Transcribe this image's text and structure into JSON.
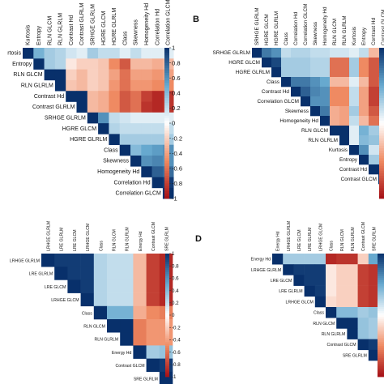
{
  "colorbar": {
    "ticks": [
      "1",
      "0.8",
      "0.6",
      "0.4",
      "0.2",
      "0",
      "-0.2",
      "-0.4",
      "-0.6",
      "-0.8",
      "-1"
    ],
    "colors": {
      "neg": "#a50f15",
      "mid": "#ffffff",
      "pos": "#08306b"
    }
  },
  "chart_data": [
    {
      "type": "heatmap",
      "panel": "A",
      "panel_label": "",
      "variables": [
        "Kurtosis",
        "Entropy",
        "RLN GLCM",
        "RLN GLRLM",
        "Contrast Hd",
        "Contrast GLRLM",
        "SRHGE GLRLM",
        "HGRE GLCM",
        "HGRE GLRLM",
        "Class",
        "Skewness",
        "Homogeneity Hd",
        "Correlation Hd",
        "Correlation GLCM"
      ],
      "column_labels": [
        "Kurtosis",
        "Entropy",
        "RLN GLCM",
        "RLN GLRLM",
        "Contrast Hd",
        "Contrast GLRLM",
        "SRHGE GLRLM",
        "HGRE GLCM",
        "HGRE GLRLM",
        "Class",
        "Skewness",
        "Homogeneity Hd",
        "Correlation Hd",
        "Correlation GLCM"
      ],
      "row_labels": [
        "rtosis",
        "Entropy",
        "RLN GLCM",
        "RLN GLRLM",
        "Contrast Hd",
        "Contrast GLRLM",
        "SRHGE GLRLM",
        "HGRE GLCM",
        "HGRE GLRLM",
        "Class",
        "Skewness",
        "Homogeneity Hd",
        "Correlation Hd",
        "Correlation GLCM"
      ],
      "upper_triangle": [
        [
          0.45,
          0.3,
          0.25,
          0.15,
          0.1,
          0.3,
          0.2,
          0.2,
          0.1,
          0.2,
          0.1,
          0.1,
          0.1
        ],
        [
          0.3,
          0.25,
          -0.1,
          -0.2,
          -0.2,
          -0.25,
          -0.5,
          -0.7,
          -0.3,
          -0.3,
          -0.35,
          -0.3
        ],
        [
          1.0,
          -0.2,
          -0.3,
          -0.2,
          -0.25,
          -0.4,
          -0.6,
          -0.4,
          -0.4,
          -0.45,
          -0.4
        ],
        [
          -0.25,
          -0.3,
          -0.2,
          -0.25,
          -0.45,
          -0.6,
          -0.45,
          -0.45,
          -0.5,
          -0.5
        ],
        [
          1.0,
          -0.3,
          -0.35,
          -0.5,
          -0.7,
          -0.6,
          -0.8,
          -0.9,
          -0.85
        ],
        [
          -0.3,
          -0.35,
          -0.5,
          -0.7,
          -0.6,
          -0.85,
          -0.9,
          -0.85
        ],
        [
          0.6,
          0.2,
          0.15,
          0.1,
          0.1,
          0.1,
          0.1
        ],
        [
          0.25,
          0.2,
          0.2,
          0.2,
          0.2,
          0.2
        ],
        [
          0.3,
          0.3,
          0.3,
          0.3,
          0.3
        ],
        [
          0.4,
          0.5,
          0.55,
          0.6
        ],
        [
          0.6,
          0.65,
          0.6
        ],
        [
          0.8,
          0.75
        ],
        [
          0.95
        ]
      ]
    },
    {
      "type": "heatmap",
      "panel": "B",
      "panel_label": "B",
      "variables": [
        "SRHGE GLRLM",
        "HGRE GLCM",
        "HGRE GLRLM",
        "Class",
        "Contrast Hd",
        "Correlation GLCM",
        "Skewness",
        "Homogeneity Hd",
        "RLN GLCM",
        "RLN GLRLM",
        "Kurtosis",
        "Entropy",
        "Contrast Hd",
        "Contrast GLCM"
      ],
      "column_labels": [
        "SRHGE GLRLM",
        "HGRE GLCM",
        "HGRE GLRLM",
        "Class",
        "Correlation Hd",
        "Correlation GLCM",
        "Skewness",
        "Homogeneity Hd",
        "RLN GLCM",
        "RLN GLRLM",
        "Kurtosis",
        "Entropy",
        "Contrast Hd",
        "Contrast GLCM"
      ],
      "row_labels": [
        "SRHGE GLRLM",
        "HGRE GLCM",
        "HGRE GLRLM",
        "Class",
        "Contrast Hd",
        "Correlation GLCM",
        "Skewness",
        "Homogeneity Hd",
        "RLN GLCM",
        "RLN GLRLM",
        "Kurtosis",
        "Entropy",
        "Contrast Hd",
        "Contrast GLCM"
      ],
      "upper_triangle": [
        [
          0.7,
          0.6,
          0.2,
          0.25,
          0.25,
          0.2,
          0.2,
          0.15,
          0.15,
          0.1,
          0.2,
          -0.3,
          -0.3
        ],
        [
          0.9,
          0.3,
          0.3,
          0.3,
          0.25,
          0.25,
          -0.6,
          -0.6,
          0.3,
          -0.5,
          -0.7,
          -0.7
        ],
        [
          0.3,
          0.3,
          0.3,
          0.25,
          0.25,
          -0.6,
          -0.6,
          0.3,
          -0.5,
          -0.7,
          -0.7
        ],
        [
          0.7,
          0.7,
          0.6,
          0.5,
          -0.3,
          -0.3,
          0.1,
          -0.3,
          -0.7,
          -0.65
        ],
        [
          0.8,
          0.65,
          0.6,
          -0.5,
          -0.5,
          0.2,
          -0.4,
          -0.8,
          -0.8
        ],
        [
          0.6,
          0.6,
          -0.5,
          -0.5,
          0.2,
          -0.4,
          -0.8,
          -0.8
        ],
        [
          0.7,
          -0.35,
          -0.4,
          0.3,
          -0.4,
          -0.7,
          -0.7
        ],
        [
          -0.35,
          -0.4,
          0.2,
          -0.3,
          -0.6,
          -0.6
        ],
        [
          1.0,
          0.1,
          0.45,
          0.3,
          0.3
        ],
        [
          0.1,
          0.4,
          0.35,
          0.35
        ],
        [
          0.6,
          0.15,
          0.15
        ],
        [
          0.3,
          0.3
        ],
        [
          1.0
        ]
      ]
    },
    {
      "type": "heatmap",
      "panel": "C",
      "panel_label": "",
      "variables": [
        "LRHGE GLRLM",
        "LRE GLRLM",
        "LRE GLCM",
        "LRHGE GLCM",
        "Class",
        "RLN GLCM",
        "RLN GLRLM",
        "Energy Hd",
        "Contrast GLRLM",
        "SRE GLRLM"
      ],
      "column_labels": [
        "LRHGE GLRLM",
        "LRE GLRLM",
        "LRE GLCM",
        "LRHGE GLCM",
        "Class",
        "RLN GLCM",
        "RLN GLRLM",
        "Energy Hd",
        "Contrast GLCM",
        "SRE GLRLM"
      ],
      "row_labels": [
        "LRHGE GLRLM",
        "LRE GLRLM",
        "LRE GLCM",
        "LRHGE GLCM",
        "Class",
        "RLN GLCM",
        "RLN GLRLM",
        "Energy Hd",
        "Contrast GLCM",
        "SRE GLRLM"
      ],
      "upper_triangle": [
        [
          0.95,
          0.95,
          0.95,
          0.25,
          0.2,
          0.2,
          -0.3,
          -0.8,
          -0.9
        ],
        [
          0.95,
          0.95,
          0.25,
          0.2,
          0.2,
          -0.3,
          -0.8,
          -0.9
        ],
        [
          0.95,
          0.25,
          0.2,
          0.2,
          -0.3,
          -0.8,
          -0.9
        ],
        [
          0.25,
          0.2,
          0.2,
          -0.3,
          -0.8,
          -0.9
        ],
        [
          0.45,
          0.45,
          -0.35,
          -0.5,
          -0.55
        ],
        [
          1.0,
          -0.55,
          -0.45,
          -0.45
        ],
        [
          -0.55,
          -0.45,
          -0.45
        ],
        [
          0.3,
          0.35
        ],
        [
          0.95
        ]
      ]
    },
    {
      "type": "heatmap",
      "panel": "D",
      "panel_label": "D",
      "variables": [
        "Energy Hd",
        "LRHGE GLRLM",
        "LRE GLCM",
        "LRE GLRLM",
        "LRHGE GLCM",
        "Class",
        "RLN GLCM",
        "RLN GLRLM",
        "Contrast GLCM",
        "SRE GLRLM"
      ],
      "column_labels": [
        "Energy Hd",
        "LRHGE GLRLM",
        "LRE GLCM",
        "LRE GLRLM",
        "LRHGE GLCM",
        "Class",
        "RLN GLCM",
        "RLN GLRLM",
        "Contrast GLCM",
        "SRE GLRLM"
      ],
      "row_labels": [
        "Energy Hd",
        "LRHGE GLRLM",
        "LRE GLCM",
        "LRE GLRLM",
        "LRHGE GLCM",
        "Class",
        "RLN GLCM",
        "RLN GLRLM",
        "Contrast GLCM",
        "SRE GLRLM"
      ],
      "upper_triangle": [
        [
          0.3,
          0.3,
          0.3,
          0.3,
          -0.9,
          -0.85,
          -0.85,
          -0.2,
          0.5
        ],
        [
          0.95,
          0.95,
          0.95,
          -0.1,
          -0.2,
          -0.2,
          -0.8,
          -0.85
        ],
        [
          0.95,
          0.95,
          -0.1,
          -0.2,
          -0.2,
          -0.8,
          -0.85
        ],
        [
          0.95,
          -0.1,
          -0.2,
          -0.2,
          -0.8,
          -0.85
        ],
        [
          -0.15,
          -0.2,
          -0.2,
          -0.8,
          -0.85
        ],
        [
          0.4,
          0.4,
          0.3,
          0.35
        ],
        [
          1.0,
          0.35,
          0.3
        ],
        [
          0.35,
          0.3
        ],
        [
          0.95
        ]
      ]
    }
  ]
}
